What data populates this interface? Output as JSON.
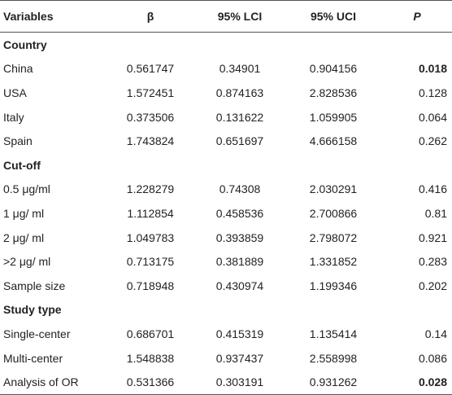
{
  "headers": [
    "Variables",
    "β",
    "95% LCI",
    "95% UCI",
    "P"
  ],
  "sections": [
    {
      "title": "Country",
      "rows": [
        {
          "label": "China",
          "beta": "0.561747",
          "lci": "0.34901",
          "uci": "0.904156",
          "p": "0.018",
          "p_bold": true
        },
        {
          "label": "USA",
          "beta": "1.572451",
          "lci": "0.874163",
          "uci": "2.828536",
          "p": "0.128",
          "p_bold": false
        },
        {
          "label": "Italy",
          "beta": "0.373506",
          "lci": "0.131622",
          "uci": "1.059905",
          "p": "0.064",
          "p_bold": false
        },
        {
          "label": "Spain",
          "beta": "1.743824",
          "lci": "0.651697",
          "uci": "4.666158",
          "p": "0.262",
          "p_bold": false
        }
      ]
    },
    {
      "title": "Cut-off",
      "rows": [
        {
          "label": "0.5 μg/ml",
          "beta": "1.228279",
          "lci": "0.74308",
          "uci": "2.030291",
          "p": "0.416",
          "p_bold": false
        },
        {
          "label": "1 μg/ ml",
          "beta": "1.112854",
          "lci": "0.458536",
          "uci": "2.700866",
          "p": "0.81",
          "p_bold": false
        },
        {
          "label": "2 μg/ ml",
          "beta": "1.049783",
          "lci": "0.393859",
          "uci": "2.798072",
          "p": "0.921",
          "p_bold": false
        },
        {
          "label": ">2 μg/ ml",
          "beta": "0.713175",
          "lci": "0.381889",
          "uci": "1.331852",
          "p": "0.283",
          "p_bold": false
        },
        {
          "label": "Sample size",
          "beta": "0.718948",
          "lci": "0.430974",
          "uci": "1.199346",
          "p": "0.202",
          "p_bold": false
        }
      ]
    },
    {
      "title": "Study type",
      "rows": [
        {
          "label": "Single-center",
          "beta": "0.686701",
          "lci": "0.415319",
          "uci": "1.135414",
          "p": "0.14",
          "p_bold": false
        },
        {
          "label": "Multi-center",
          "beta": "1.548838",
          "lci": "0.937437",
          "uci": "2.558998",
          "p": "0.086",
          "p_bold": false
        },
        {
          "label": "Analysis of OR",
          "beta": "0.531366",
          "lci": "0.303191",
          "uci": "0.931262",
          "p": "0.028",
          "p_bold": true
        }
      ]
    }
  ]
}
